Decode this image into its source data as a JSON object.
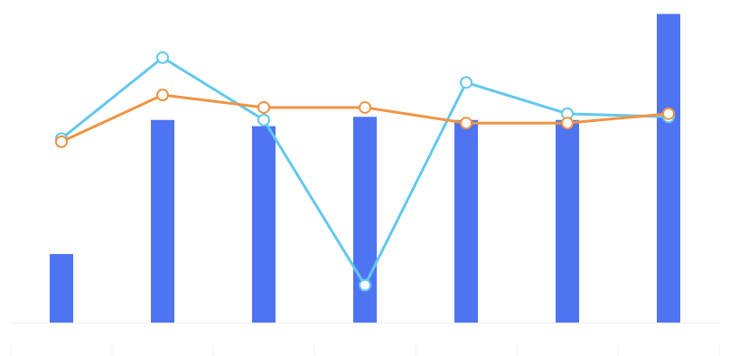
{
  "chart_data": {
    "type": "bar",
    "categories": [
      "",
      "",
      "",
      "",
      "",
      "",
      ""
    ],
    "ylim": [
      0,
      100
    ],
    "grid": false,
    "legend": "none",
    "series": [
      {
        "kind": "bar",
        "color": "#4f74f2",
        "values": [
          22,
          65,
          63,
          66,
          65,
          65,
          99
        ]
      },
      {
        "kind": "line",
        "color": "#62c8ec",
        "values": [
          59,
          85,
          65,
          12,
          77,
          67,
          66
        ]
      },
      {
        "kind": "line",
        "color": "#ef9445",
        "values": [
          58,
          73,
          69,
          69,
          64,
          64,
          67
        ]
      }
    ]
  }
}
